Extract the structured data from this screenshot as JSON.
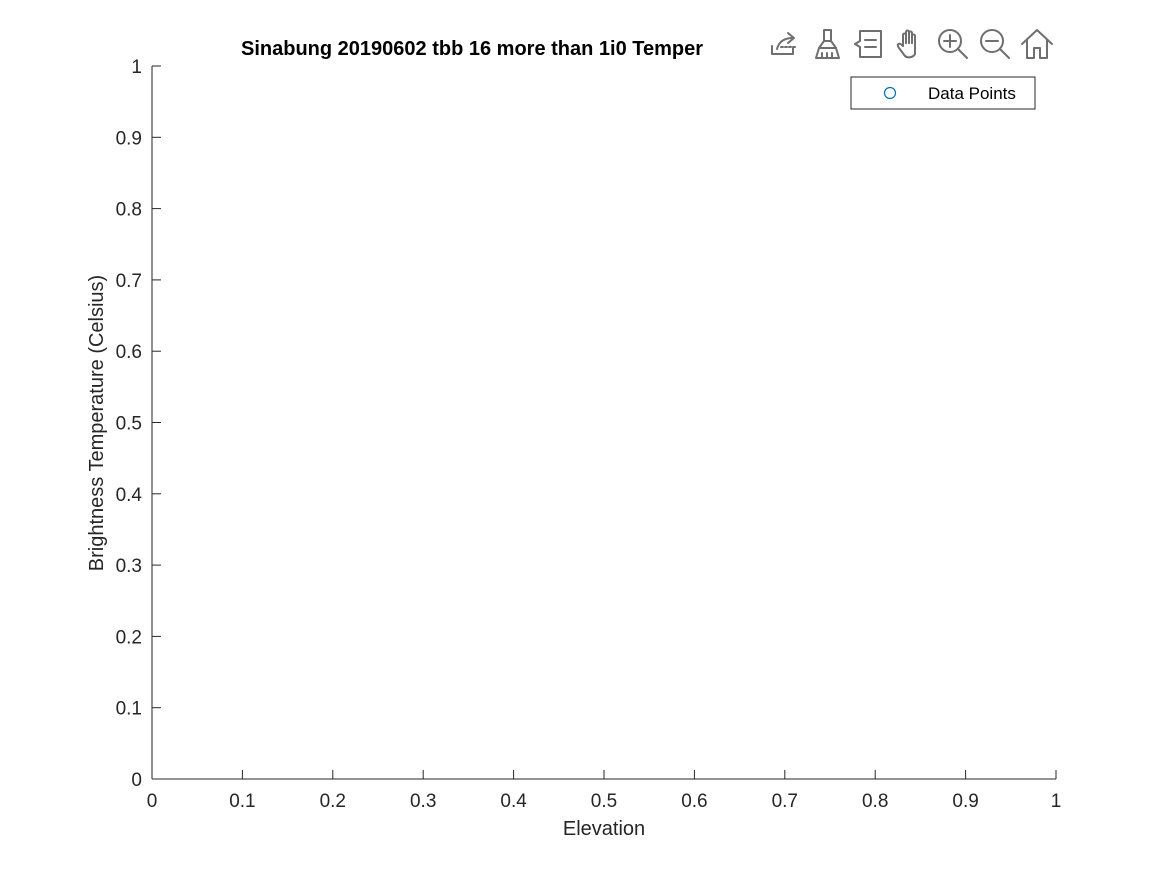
{
  "toolbar": {
    "buttons": [
      {
        "name": "export-icon"
      },
      {
        "name": "brush-icon"
      },
      {
        "name": "datatip-icon"
      },
      {
        "name": "pan-icon"
      },
      {
        "name": "zoom-in-icon"
      },
      {
        "name": "zoom-out-icon"
      },
      {
        "name": "home-icon"
      }
    ]
  },
  "chart_data": {
    "type": "scatter",
    "title": "Sinabung 20190602 tbb 16 more than 1i0 Temper",
    "xlabel": "Elevation",
    "ylabel": "Brightness Temperature (Celsius)",
    "xlim": [
      0,
      1
    ],
    "ylim": [
      0,
      1
    ],
    "xticks": [
      "0",
      "0.1",
      "0.2",
      "0.3",
      "0.4",
      "0.5",
      "0.6",
      "0.7",
      "0.8",
      "0.9",
      "1"
    ],
    "yticks": [
      "0",
      "0.1",
      "0.2",
      "0.3",
      "0.4",
      "0.5",
      "0.6",
      "0.7",
      "0.8",
      "0.9",
      "1"
    ],
    "grid": false,
    "legend_position": "top-right",
    "series": [
      {
        "name": "Data Points",
        "marker": "circle",
        "color": "#0072bd",
        "x": [],
        "y": []
      }
    ]
  }
}
